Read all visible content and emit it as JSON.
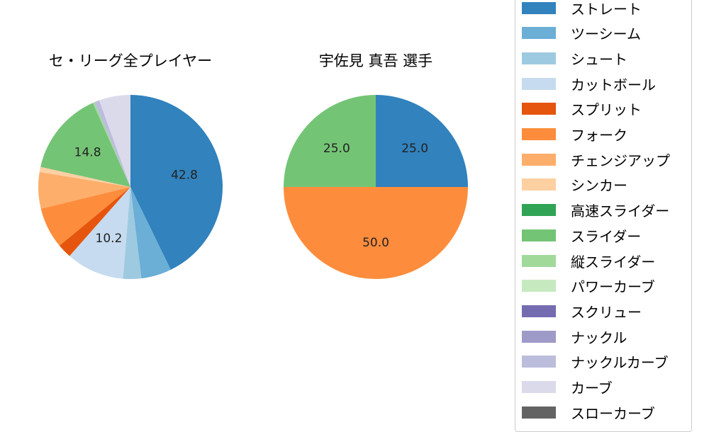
{
  "chart_data": [
    {
      "type": "pie",
      "title": "セ・リーグ全プレイヤー",
      "start_angle": 90,
      "direction": "clockwise",
      "categories": [
        "ストレート",
        "ツーシーム",
        "シュート",
        "カットボール",
        "スプリット",
        "フォーク",
        "チェンジアップ",
        "シンカー",
        "スライダー",
        "縦スライダー",
        "ナックルカーブ",
        "カーブ"
      ],
      "values": [
        42.8,
        5.3,
        3.2,
        10.2,
        2.5,
        7.2,
        6.4,
        0.9,
        14.8,
        0.3,
        0.9,
        5.5
      ],
      "colors": [
        "#3182bd",
        "#6baed6",
        "#9ecae1",
        "#c6dbef",
        "#e6550d",
        "#fd8d3c",
        "#fdae6b",
        "#fdd0a2",
        "#74c476",
        "#a1d99b",
        "#bcbddc",
        "#dadaeb"
      ],
      "labels_shown": {
        "ストレート": "42.8",
        "カットボール": "10.2",
        "スライダー": "14.8"
      }
    },
    {
      "type": "pie",
      "title": "宇佐見 真吾  選手",
      "start_angle": 90,
      "direction": "clockwise",
      "categories": [
        "ストレート",
        "フォーク",
        "スライダー"
      ],
      "values": [
        25.0,
        50.0,
        25.0
      ],
      "colors": [
        "#3182bd",
        "#fd8d3c",
        "#74c476"
      ],
      "labels_shown": {
        "ストレート": "25.0",
        "フォーク": "50.0",
        "スライダー": "25.0"
      }
    }
  ],
  "titles": {
    "left": "セ・リーグ全プレイヤー",
    "right": "宇佐見 真吾  選手"
  },
  "legend": {
    "items": [
      {
        "label": "ストレート",
        "color": "#3182bd"
      },
      {
        "label": "ツーシーム",
        "color": "#6baed6"
      },
      {
        "label": "シュート",
        "color": "#9ecae1"
      },
      {
        "label": "カットボール",
        "color": "#c6dbef"
      },
      {
        "label": "スプリット",
        "color": "#e6550d"
      },
      {
        "label": "フォーク",
        "color": "#fd8d3c"
      },
      {
        "label": "チェンジアップ",
        "color": "#fdae6b"
      },
      {
        "label": "シンカー",
        "color": "#fdd0a2"
      },
      {
        "label": "高速スライダー",
        "color": "#31a354"
      },
      {
        "label": "スライダー",
        "color": "#74c476"
      },
      {
        "label": "縦スライダー",
        "color": "#a1d99b"
      },
      {
        "label": "パワーカーブ",
        "color": "#c7e9c0"
      },
      {
        "label": "スクリュー",
        "color": "#756bb1"
      },
      {
        "label": "ナックル",
        "color": "#9e9ac8"
      },
      {
        "label": "ナックルカーブ",
        "color": "#bcbddc"
      },
      {
        "label": "カーブ",
        "color": "#dadaeb"
      },
      {
        "label": "スローカーブ",
        "color": "#636363"
      }
    ]
  }
}
